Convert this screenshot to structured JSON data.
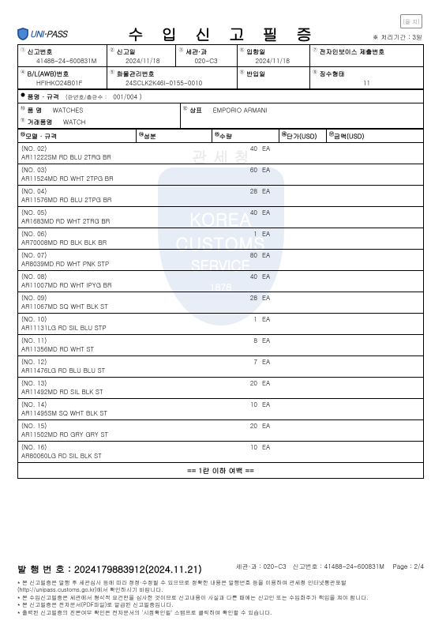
{
  "seal_label": "(을 지)",
  "processing_time": "※ 처리기간 : 3일",
  "logo_uni": "UNI",
  "logo_sep": "·",
  "logo_pass": "PASS",
  "doc_title": "수 입 신 고 필 증",
  "sup": {
    "1": "①",
    "2": "②",
    "3": "③",
    "4": "④",
    "5": "⑤",
    "6": "⑥",
    "7": "⑦",
    "8": "⑧",
    "9": "⑨",
    "10": "⑩",
    "11": "⑪",
    "12": "⑫",
    "13": "⑬",
    "14": "⑭"
  },
  "head": {
    "decl_no_label": "신고번호",
    "decl_no": "41488-24-600831M",
    "decl_date_label": "신고일",
    "decl_date": "2024/11/18",
    "customs_label": "세관·과",
    "customs": "020-C3",
    "entry_date_label": "입항일",
    "entry_date": "2024/11/18",
    "einvoice_label": "전자인보이스 제출번호",
    "einvoice": "",
    "bl_label": "B/L(AWB)번호",
    "bl": "HFIHKO24B01F",
    "cargo_label": "화물관리번호",
    "cargo": "24SCLK2K46I-0155-0010",
    "return_label": "반입일",
    "return": "",
    "coll_label": "징수형태",
    "coll": "11"
  },
  "meta": {
    "row_label": "품명 · 규격",
    "row_sub": "(란번호/총란수 :",
    "row_val": "001/004",
    "row_end": ")",
    "item_name_label": "품   명",
    "item_name": "WATCHES",
    "trade_name_label": "거래품명",
    "trade_name": "WATCH",
    "brand_label": "상표",
    "brand": "EMPORIO ARMANI"
  },
  "cols": {
    "model": "모델 · 규격",
    "comp": "성분",
    "qty": "수량",
    "unit": "단가(USD)",
    "amount": "금액(USD)"
  },
  "items": [
    {
      "no": "(NO. 02)",
      "model": "AR11222SM RD BLU 2TRG BR",
      "qty": "40",
      "unit": "EA"
    },
    {
      "no": "(NO. 03)",
      "model": "AR11524MD RD WHT 2TPG BR",
      "qty": "60",
      "unit": "EA"
    },
    {
      "no": "(NO. 04)",
      "model": "AR11576MD RD BLU 2TPG BR",
      "qty": "28",
      "unit": "EA"
    },
    {
      "no": "(NO. 05)",
      "model": "AR1683MD RD WHT 2TRG BR",
      "qty": "40",
      "unit": "EA"
    },
    {
      "no": "(NO. 06)",
      "model": "AR70008MD RD BLK BLK BR",
      "qty": "1",
      "unit": "EA"
    },
    {
      "no": "(NO. 07)",
      "model": "AR8039MD RD WHT PNK STP",
      "qty": "80",
      "unit": "EA"
    },
    {
      "no": "(NO. 08)",
      "model": "AR11007MD RD WHT IPYG BR",
      "qty": "40",
      "unit": "EA"
    },
    {
      "no": "(NO. 09)",
      "model": "AR11067MD SQ WHT BLK ST",
      "qty": "28",
      "unit": "EA"
    },
    {
      "no": "(NO. 10)",
      "model": "AR11131LG RD SIL BLU STP",
      "qty": "1",
      "unit": "EA"
    },
    {
      "no": "(NO. 11)",
      "model": "AR11356MD RD WHT ST",
      "qty": "8",
      "unit": "EA"
    },
    {
      "no": "(NO. 12)",
      "model": "AR11476LG RD BLU BLU ST",
      "qty": "7",
      "unit": "EA"
    },
    {
      "no": "(NO. 13)",
      "model": "AR11492MD RD SIL BLK ST",
      "qty": "20",
      "unit": "EA"
    },
    {
      "no": "(NO. 14)",
      "model": "AR11495SM SQ WHT BLK ST",
      "qty": "10",
      "unit": "EA"
    },
    {
      "no": "(NO. 15)",
      "model": "AR11502MD RD GRY GRY ST",
      "qty": "20",
      "unit": "EA"
    },
    {
      "no": "(NO. 16)",
      "model": "AR80060LG RD SIL BLK ST",
      "qty": "10",
      "unit": "EA"
    }
  ],
  "blank_below": "== 1란 이하 여백 ==",
  "footer": {
    "issue_label": "발 행 번 호 :",
    "issue_no": "2024179883912(2024.11.21)",
    "customs_label": "세관·과 :",
    "customs": "020-C3",
    "decl_label": "신고번호 :",
    "decl": "41488-24-600831M",
    "page_label": "Page :",
    "page": "2/4",
    "notes": [
      "* 본 신고필증은 발행 후 세관심사 등에 따라 정정·수정될 수 있으므로 정확한 내용은 발행번호 등을 이용하여 관세청 인터넷통관포털",
      "  (http://unipass.customs.go.kr)에서 확인하시기 바랍니다.",
      "* 본 수입신고필증은 세관에서 형식적 요건만을 심사한 것이므로 신고내용이 사실과 다른 때에는 신고인 또는 수입화주가 책임을 져야 합니다.",
      "* 본 신고필증은 전자문서(PDF파일)로 발급된 신고필증입니다.",
      "* 출력된 신고필증의 진본여부 확인은 전자문서의 '시점확인필' 스탬프로 클릭하여 확인할 수 있습니다."
    ]
  },
  "watermark": {
    "korean": "관 세 청",
    "en1": "KOREA",
    "en2": "CUSTOMS",
    "en3": "SERVICE",
    "yr": "1878"
  }
}
